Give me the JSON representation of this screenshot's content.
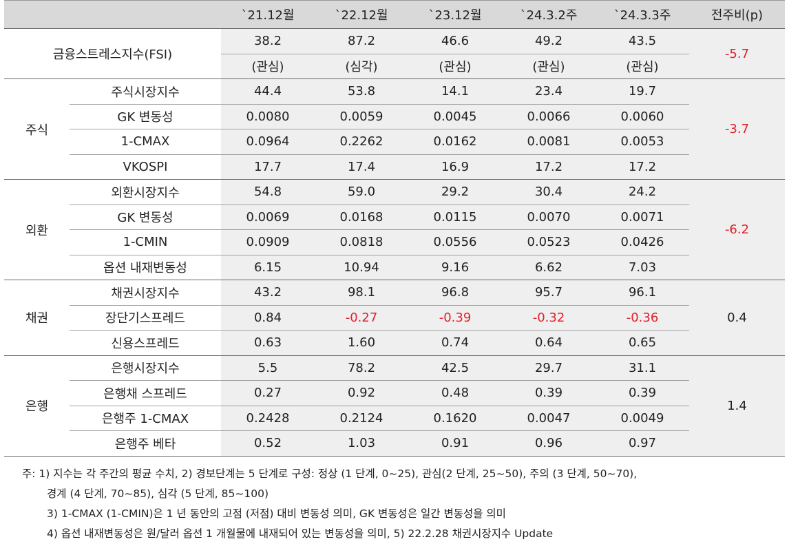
{
  "header": [
    "",
    "",
    "`21.12월",
    "`22.12월",
    "`23.12월",
    "`24.3.2주",
    "`24.3.3주",
    "전주비(p)"
  ],
  "fsi": {
    "label": "금융스트레스지수(FSI)",
    "values": [
      "38.2",
      "87.2",
      "46.6",
      "49.2",
      "43.5"
    ],
    "levels": [
      "(관심)",
      "(심각)",
      "(관심)",
      "(관심)",
      "(관심)"
    ],
    "wow": "-5.7"
  },
  "groups": [
    {
      "name": "주식",
      "wow": "-3.7",
      "rows": [
        {
          "item": "주식시장지수",
          "values": [
            "44.4",
            "53.8",
            "14.1",
            "23.4",
            "19.7"
          ]
        },
        {
          "item": "GK 변동성",
          "values": [
            "0.0080",
            "0.0059",
            "0.0045",
            "0.0066",
            "0.0060"
          ]
        },
        {
          "item": "1-CMAX",
          "values": [
            "0.0964",
            "0.2262",
            "0.0162",
            "0.0081",
            "0.0053"
          ]
        },
        {
          "item": "VKOSPI",
          "values": [
            "17.7",
            "17.4",
            "16.9",
            "17.2",
            "17.2"
          ]
        }
      ]
    },
    {
      "name": "외환",
      "wow": "-6.2",
      "rows": [
        {
          "item": "외환시장지수",
          "values": [
            "54.8",
            "59.0",
            "29.2",
            "30.4",
            "24.2"
          ]
        },
        {
          "item": "GK 변동성",
          "values": [
            "0.0069",
            "0.0168",
            "0.0115",
            "0.0070",
            "0.0071"
          ]
        },
        {
          "item": "1-CMIN",
          "values": [
            "0.0909",
            "0.0818",
            "0.0556",
            "0.0523",
            "0.0426"
          ]
        },
        {
          "item": "옵션 내재변동성",
          "values": [
            "6.15",
            "10.94",
            "9.16",
            "6.62",
            "7.03"
          ]
        }
      ]
    },
    {
      "name": "채권",
      "wow": "0.4",
      "rows": [
        {
          "item": "채권시장지수",
          "values": [
            "43.2",
            "98.1",
            "96.8",
            "95.7",
            "96.1"
          ]
        },
        {
          "item": "장단기스프레드",
          "values": [
            "0.84",
            "-0.27",
            "-0.39",
            "-0.32",
            "-0.36"
          ]
        },
        {
          "item": "신용스프레드",
          "values": [
            "0.63",
            "1.60",
            "0.74",
            "0.64",
            "0.65"
          ]
        }
      ]
    },
    {
      "name": "은행",
      "wow": "1.4",
      "rows": [
        {
          "item": "은행시장지수",
          "values": [
            "5.5",
            "78.2",
            "42.5",
            "29.7",
            "31.1"
          ]
        },
        {
          "item": "은행채 스프레드",
          "values": [
            "0.27",
            "0.92",
            "0.48",
            "0.39",
            "0.39"
          ]
        },
        {
          "item": "은행주 1-CMAX",
          "values": [
            "0.2428",
            "0.2124",
            "0.1620",
            "0.0047",
            "0.0049"
          ]
        },
        {
          "item": "은행주 베타",
          "values": [
            "0.52",
            "1.03",
            "0.91",
            "0.96",
            "0.97"
          ]
        }
      ]
    }
  ],
  "notes": [
    "주: 1) 지수는 각 주간의 평균 수치, 2) 경보단계는 5 단계로 구성: 정상 (1 단계, 0~25), 관심(2 단계, 25~50), 주의 (3 단계, 50~70),",
    "경계 (4 단계, 70~85), 심각 (5 단계, 85~100)",
    "3) 1-CMAX (1-CMIN)은 1 년 동안의 고점 (저점) 대비 변동성 의미, GK 변동성은 일간 변동성을 의미",
    "4) 옵션 내재변동성은 원/달러 옵션 1 개월물에 내재되어 있는 변동성을 의미, 5) 22.2.28 채권시장지수 Update"
  ],
  "colors": {
    "header_bg": "#d9d9d9",
    "value_bg": "#efefef",
    "negative": "#e0202a"
  }
}
